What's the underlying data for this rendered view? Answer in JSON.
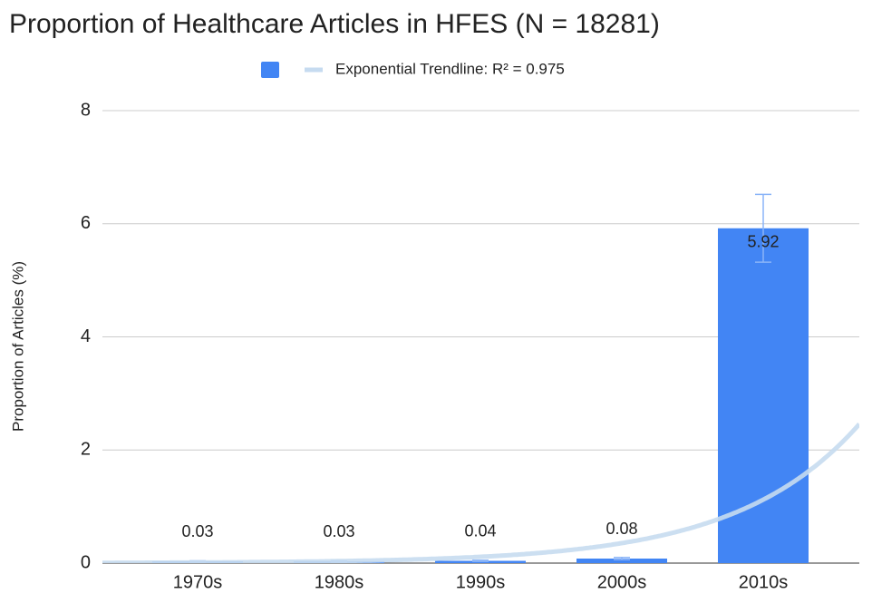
{
  "chart_data": {
    "type": "bar",
    "title": "Proportion of Healthcare Articles in HFES (N = 18281)",
    "y_label": "Proportion of Articles (%)",
    "trendline": {
      "type": "exponential",
      "label": "Exponential Trendline: R² = 0.975",
      "color": "#c6dbf0"
    },
    "categories": [
      "1970s",
      "1980s",
      "1990s",
      "2000s",
      "2010s"
    ],
    "values": [
      0.03,
      0.03,
      0.04,
      0.08,
      5.92
    ],
    "errors": [
      0.01,
      0.01,
      0.01,
      0.02,
      0.6
    ],
    "color": "#4285f4",
    "ylim": [
      0,
      8
    ],
    "yticks": [
      0,
      2,
      4,
      6,
      8
    ],
    "grid": true
  }
}
